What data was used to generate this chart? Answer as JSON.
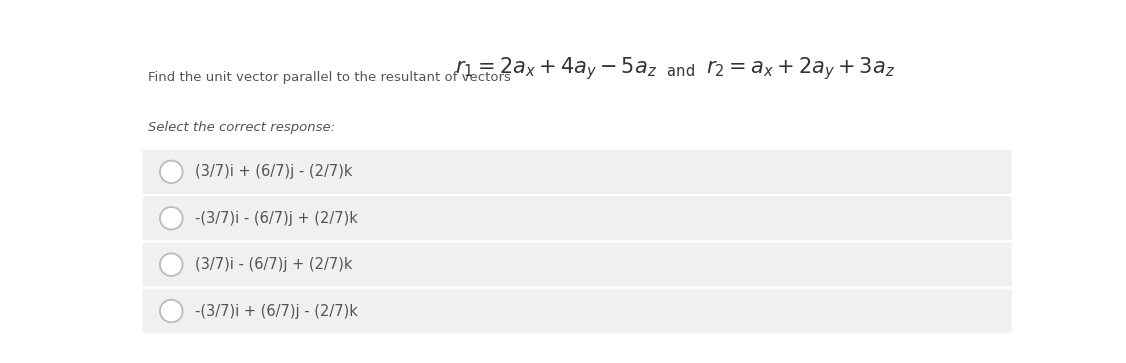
{
  "bg_color": "#ffffff",
  "option_box_color": "#f0f0f0",
  "text_color": "#555555",
  "dark_text": "#333333",
  "intro_text": "Find the unit vector parallel to the resultant of vectors",
  "subtitle": "Select the correct response:",
  "options": [
    "(3/7)i + (6/7)j - (2/7)k",
    "-(3/7)i - (6/7)j + (2/7)k",
    "(3/7)i - (6/7)j + (2/7)k",
    "-(3/7)i + (6/7)j - (2/7)k"
  ],
  "circle_edge_color": "#bbbbbb",
  "circle_face_color": "#ffffff",
  "figwidth": 11.26,
  "figheight": 3.63,
  "dpi": 100
}
